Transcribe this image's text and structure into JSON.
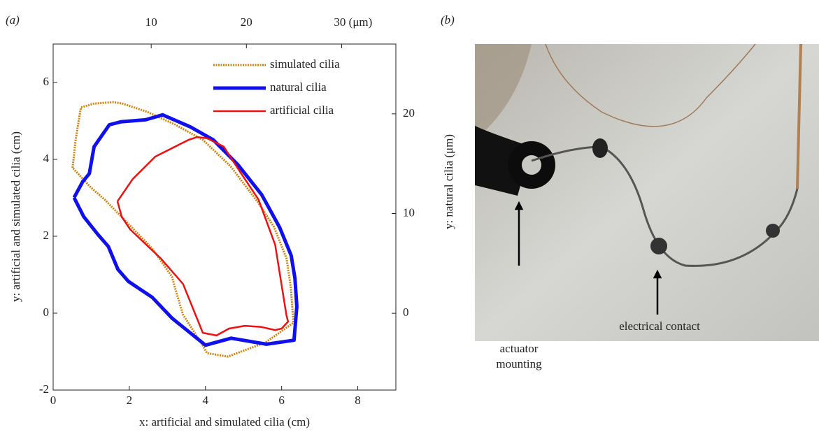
{
  "panel_labels": [
    "(a)",
    "(b)"
  ],
  "photo": {
    "annotations": [
      {
        "lines": [
          "actuator",
          "mounting"
        ]
      },
      {
        "lines": [
          "electrical contact"
        ]
      }
    ]
  },
  "chart_data": {
    "type": "line",
    "xlabel": "x: artificial and simulated cilia (cm)",
    "ylabel": "y: artificial and simulated cilia (cm)",
    "y2label": "y: natural cilia (μm)",
    "xlim": [
      0,
      9
    ],
    "xticks": [
      0,
      2,
      4,
      6,
      8
    ],
    "ylim": [
      -2,
      7
    ],
    "yticks": [
      -2,
      0,
      2,
      4,
      6
    ],
    "x2lim": [
      -0.3,
      35.7
    ],
    "x2ticks": [
      10,
      20,
      {
        "value": 30,
        "label": "30 (μm)"
      }
    ],
    "y2lim": [
      -7.7,
      27
    ],
    "y2ticks": [
      0,
      10,
      20
    ],
    "legend": "upper right",
    "series": [
      {
        "name": "simulated cilia",
        "color": "#d4820a",
        "style": "dotted",
        "line_width": 3,
        "x": [
          0.51,
          0.59,
          0.73,
          1.06,
          1.58,
          1.83,
          2.46,
          3.19,
          3.93,
          4.66,
          5.39,
          5.8,
          6.13,
          6.24,
          6.31,
          5.58,
          4.59,
          4.04,
          3.93,
          3.41,
          3.19,
          3.12,
          2.61,
          1.94,
          1.36,
          0.99,
          0.51
        ],
        "values": [
          3.78,
          4.51,
          5.35,
          5.45,
          5.49,
          5.45,
          5.24,
          4.91,
          4.51,
          3.82,
          2.87,
          2.24,
          1.42,
          0.69,
          -0.25,
          -0.76,
          -1.13,
          -1.04,
          -0.84,
          -0.04,
          0.69,
          0.95,
          1.67,
          2.36,
          2.95,
          3.27,
          3.78
        ]
      },
      {
        "name": "natural  cilia",
        "color": "#1010ee",
        "style": "solid",
        "line_width": 5,
        "xaxis": "x2",
        "axis": "y2",
        "x": [
          1.9,
          2.9,
          4.4,
          5.5,
          6.5,
          7.6,
          10.1,
          12.2,
          15.7,
          18.4,
          22.1,
          25.0,
          25.3,
          25.1,
          24.7,
          23.5,
          21.6,
          19.1,
          16.5,
          14.1,
          11.2,
          9.4,
          6.8,
          5.6,
          4.0,
          3.5,
          2.8,
          1.9
        ],
        "values": [
          11.6,
          9.7,
          7.9,
          6.7,
          4.4,
          3.2,
          1.6,
          -0.5,
          -3.2,
          -2.5,
          -3.1,
          -2.7,
          0.7,
          3.5,
          5.8,
          8.6,
          11.9,
          14.9,
          17.4,
          18.7,
          19.9,
          19.4,
          19.2,
          18.9,
          16.7,
          14.0,
          13.2,
          11.6
        ]
      },
      {
        "name": "artificial cilia",
        "color": "#ee1111",
        "style": "solid",
        "line_width": 2.5,
        "x": [
          1.69,
          2.09,
          2.68,
          3.56,
          3.78,
          4.04,
          4.48,
          4.84,
          5.39,
          5.83,
          6.13,
          6.17,
          6.0,
          5.83,
          5.47,
          5.03,
          4.62,
          4.29,
          3.93,
          3.41,
          2.83,
          2.02,
          1.8,
          1.69
        ],
        "values": [
          2.91,
          3.49,
          4.07,
          4.51,
          4.58,
          4.55,
          4.33,
          3.78,
          2.96,
          1.78,
          -0.07,
          -0.22,
          -0.4,
          -0.44,
          -0.36,
          -0.33,
          -0.4,
          -0.58,
          -0.51,
          0.76,
          1.42,
          2.18,
          2.51,
          2.91
        ]
      }
    ]
  }
}
